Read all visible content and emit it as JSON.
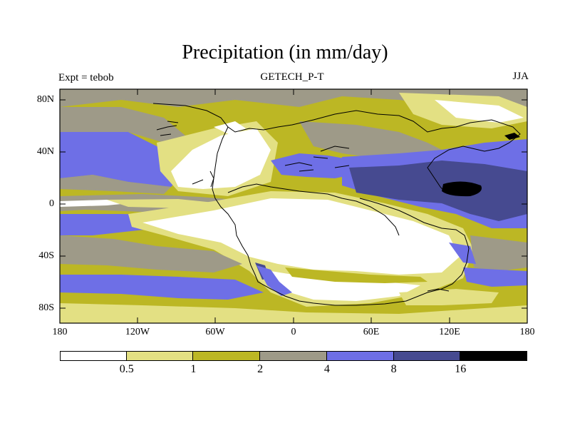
{
  "title": "Precipitation (in mm/day)",
  "subtitle_center": "GETECH_P-T",
  "subtitle_left": "Expt = tebob",
  "subtitle_right": "JJA",
  "lat_labels": [
    "80N",
    "40N",
    "0",
    "40S",
    "80S"
  ],
  "lon_labels": [
    "180",
    "120W",
    "60W",
    "0",
    "60E",
    "120E",
    "180"
  ],
  "colorbar": {
    "levels": [
      "0.5",
      "1",
      "2",
      "4",
      "8",
      "16"
    ],
    "colors": [
      "#ffffff",
      "#e3e083",
      "#bcb724",
      "#9e9a88",
      "#6e6fe6",
      "#464a90",
      "#000000"
    ]
  }
}
